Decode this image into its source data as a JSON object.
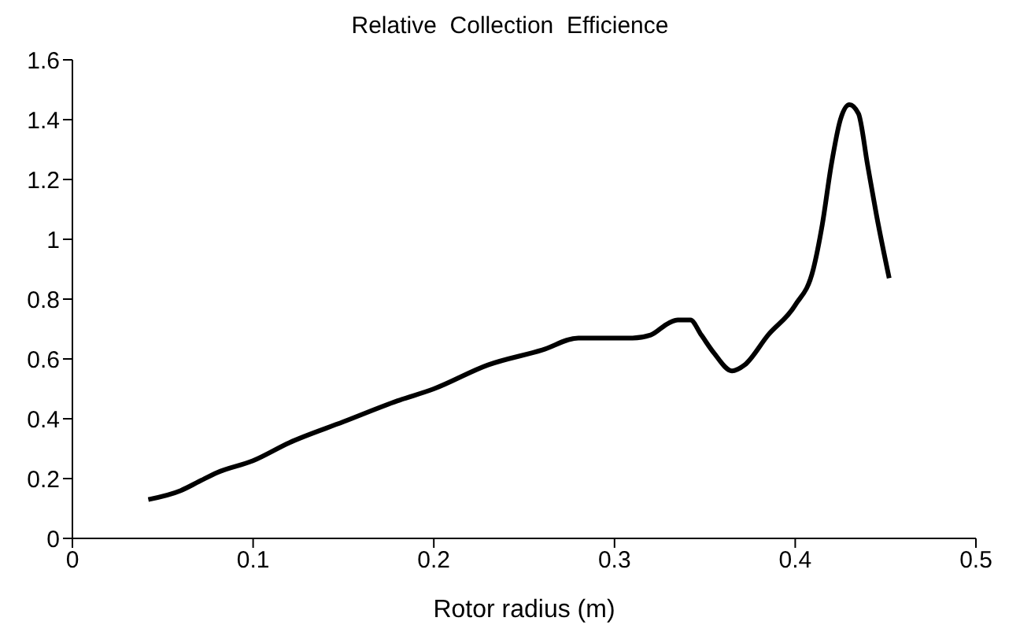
{
  "chart_data": {
    "type": "line",
    "title": "Relative  Collection  Efficience",
    "xlabel": "Rotor radius (m)",
    "xlim": [
      0,
      0.5
    ],
    "xticks": [
      0,
      0.1,
      0.2,
      0.3,
      0.4,
      0.5
    ],
    "ylim": [
      0,
      1.6
    ],
    "yticks": [
      0,
      0.2,
      0.4,
      0.6,
      0.8,
      1,
      1.2,
      1.4,
      1.6
    ],
    "grid": false,
    "legend": false,
    "marker": "none",
    "line_style": "solid",
    "series": [
      {
        "color": "#000000",
        "x": [
          0.042,
          0.06,
          0.07,
          0.08,
          0.1,
          0.12,
          0.15,
          0.18,
          0.2,
          0.23,
          0.26,
          0.28,
          0.31,
          0.32,
          0.33,
          0.335,
          0.342,
          0.348,
          0.355,
          0.365,
          0.372,
          0.385,
          0.4,
          0.41,
          0.415,
          0.42,
          0.425,
          0.43,
          0.435,
          0.44,
          0.445,
          0.452
        ],
        "values": [
          0.13,
          0.16,
          0.19,
          0.22,
          0.26,
          0.32,
          0.39,
          0.46,
          0.5,
          0.58,
          0.63,
          0.67,
          0.67,
          0.68,
          0.72,
          0.73,
          0.73,
          0.68,
          0.62,
          0.56,
          0.58,
          0.68,
          0.78,
          0.9,
          1.05,
          1.25,
          1.4,
          1.45,
          1.42,
          1.25,
          1.08,
          0.87
        ]
      }
    ]
  }
}
